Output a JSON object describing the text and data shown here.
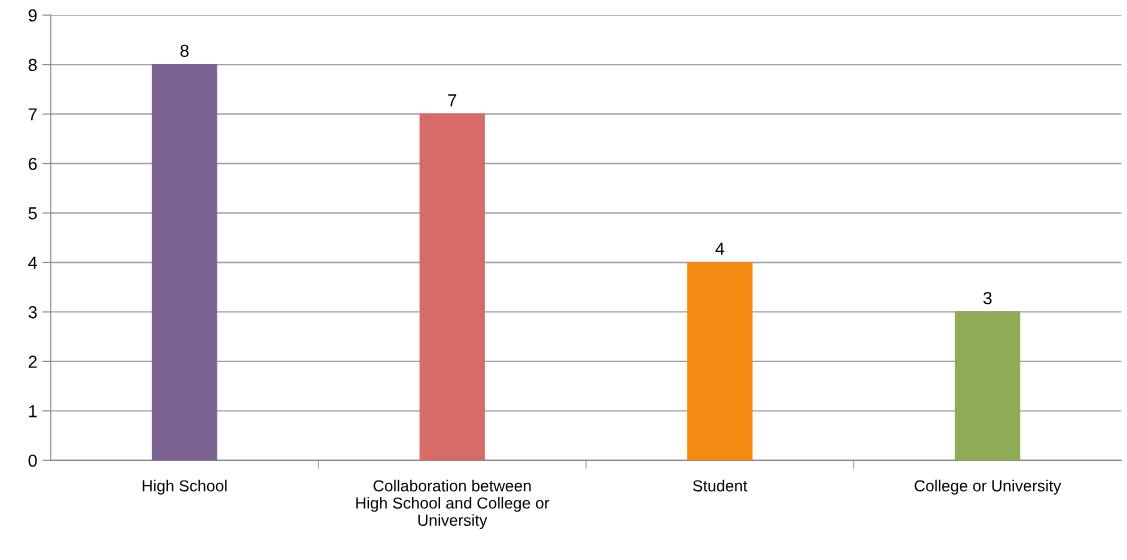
{
  "chart_data": {
    "type": "bar",
    "categories": [
      "High School",
      "Collaboration between\nHigh School and College or\nUniversity",
      "Student",
      "College or University"
    ],
    "values": [
      8,
      7,
      4,
      3
    ],
    "colors": [
      "#7b6494",
      "#d66b68",
      "#f38a12",
      "#8fab56"
    ],
    "ylim": [
      0,
      9
    ],
    "yticks": [
      0,
      1,
      2,
      3,
      4,
      5,
      6,
      7,
      8,
      9
    ],
    "grid": "y",
    "data_labels": true,
    "legend": false
  }
}
